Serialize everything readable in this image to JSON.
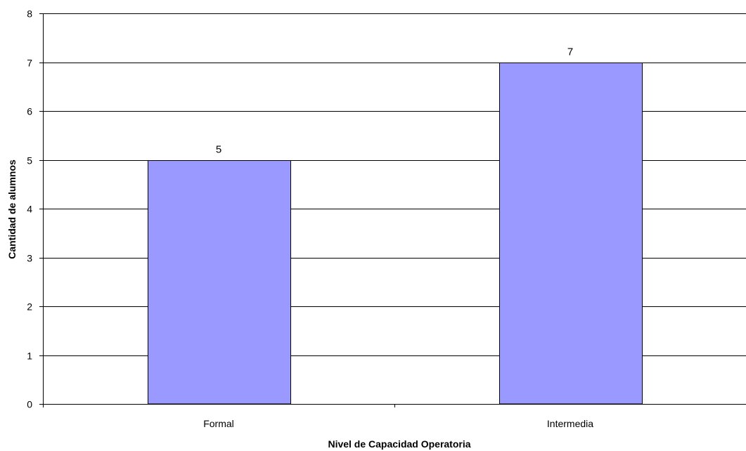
{
  "chart_data": {
    "type": "bar",
    "title": "",
    "xlabel": "Nivel de Capacidad Operatoria",
    "ylabel": "Cantidad de alumnos",
    "categories": [
      "Formal",
      "Intermedia"
    ],
    "values": [
      5,
      7
    ],
    "data_labels": [
      "5",
      "7"
    ],
    "ylim": [
      0,
      8
    ],
    "yticks": [
      "0",
      "1",
      "2",
      "3",
      "4",
      "5",
      "6",
      "7",
      "8"
    ],
    "grid": true,
    "legend": "none"
  },
  "colors": {
    "bar_fill": "#9999ff",
    "bar_stroke": "#000000",
    "grid": "#000000",
    "axis": "#000000",
    "background": "#ffffff"
  }
}
